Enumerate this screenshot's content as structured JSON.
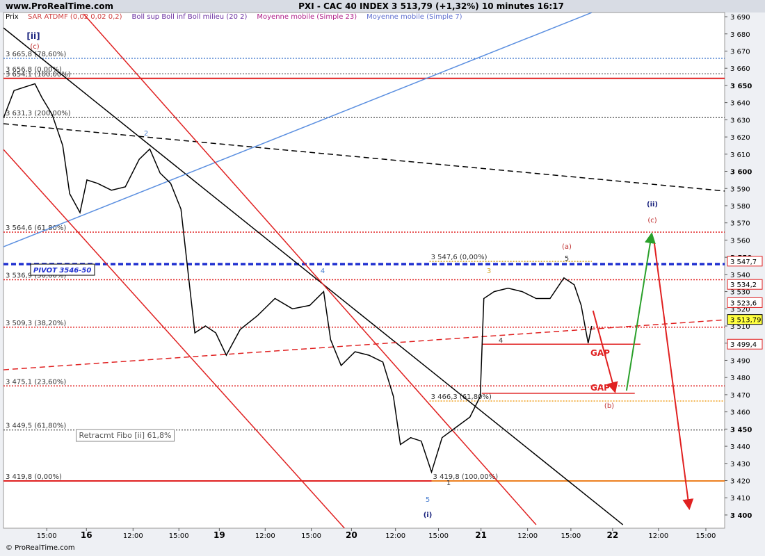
{
  "header": {
    "site": "www.ProRealTime.com",
    "title": "PXI - CAC 40 INDEX    3 513,79 (+1,32%)    10 minutes  16:17",
    "footer": "© ProRealTime.com"
  },
  "chart_data": {
    "type": "line",
    "indicators": [
      {
        "name": "SAR ATDMF (0,02 0,02 0,2)",
        "color": "#d04040"
      },
      {
        "name": "Boll sup Boll inf Boll milieu (20 2)",
        "color": "#6a2ea0"
      },
      {
        "name": "Moyenne mobile (Simple 23)",
        "color": "#b0208a"
      },
      {
        "name": "Moyenne mobile (Simple 7)",
        "color": "#6070d0"
      }
    ],
    "series": [
      {
        "name": "Prix",
        "color": "#000000",
        "x": [
          0,
          4.1,
          8.1,
          12.2,
          14.9,
          18.9,
          23.0,
          25.7,
          29.7,
          32.4,
          36.5,
          41.9,
          47.3,
          52.7,
          56.8,
          60.8,
          64.9,
          68.9,
          71.6,
          74.3,
          78.4,
          82.4,
          86.5,
          91.9,
          98.6,
          105.4,
          112.2,
          118.9,
          124.3,
          127.0,
          131.1,
          136.5,
          141.9,
          147.3,
          151.4,
          154.1,
          158.1,
          162.2,
          166.2,
          170.3,
          175.7,
          181.1,
          185.1,
          186.5,
          190.5,
          195.9,
          201.4,
          206.8,
          212.2,
          217.6,
          221.6,
          224.3,
          227.0,
          228.4
        ],
        "values": [
          3631,
          3647,
          3649,
          3651,
          3643,
          3633,
          3615,
          3587,
          3576,
          3595,
          3593,
          3589,
          3591,
          3607,
          3613,
          3599,
          3593,
          3578,
          3542,
          3506,
          3510,
          3506,
          3493,
          3508,
          3516,
          3526,
          3520,
          3522,
          3530,
          3502,
          3487,
          3495,
          3493,
          3489,
          3469,
          3441,
          3445,
          3443,
          3425,
          3445,
          3451,
          3457,
          3469,
          3526,
          3530,
          3532,
          3530,
          3526,
          3526,
          3538,
          3534,
          3522,
          3500,
          3510
        ]
      }
    ],
    "xlim": [
      0,
      280
    ],
    "xticks": [
      {
        "value": 16.8,
        "label": "15:00"
      },
      {
        "value": 32.2,
        "label": "16"
      },
      {
        "value": 50.3,
        "label": "12:00"
      },
      {
        "value": 68.1,
        "label": "15:00"
      },
      {
        "value": 83.8,
        "label": "19"
      },
      {
        "value": 101.6,
        "label": "12:00"
      },
      {
        "value": 119.5,
        "label": "15:00"
      },
      {
        "value": 135.1,
        "label": "20"
      },
      {
        "value": 152.2,
        "label": "12:00"
      },
      {
        "value": 168.9,
        "label": "15:00"
      },
      {
        "value": 185.4,
        "label": "21"
      },
      {
        "value": 203.5,
        "label": "12:00"
      },
      {
        "value": 220.3,
        "label": "15:00"
      },
      {
        "value": 236.5,
        "label": "22"
      },
      {
        "value": 254.3,
        "label": "12:00"
      },
      {
        "value": 272.7,
        "label": "15:00"
      }
    ],
    "ylim": [
      3392.3,
      3697.7
    ],
    "yticks": [
      {
        "value": 3400,
        "label": "3 400"
      },
      {
        "value": 3410,
        "label": "3 410"
      },
      {
        "value": 3420,
        "label": "3 420"
      },
      {
        "value": 3430,
        "label": "3 430"
      },
      {
        "value": 3440,
        "label": "3 440"
      },
      {
        "value": 3450,
        "label": "3 450"
      },
      {
        "value": 3460,
        "label": "3 460"
      },
      {
        "value": 3470,
        "label": "3 470"
      },
      {
        "value": 3480,
        "label": "3 480"
      },
      {
        "value": 3490,
        "label": "3 490"
      },
      {
        "value": 3500,
        "label": "3 500"
      },
      {
        "value": 3510,
        "label": "3 510"
      },
      {
        "value": 3520,
        "label": "3 520"
      },
      {
        "value": 3530,
        "label": "3 530"
      },
      {
        "value": 3540,
        "label": "3 540"
      },
      {
        "value": 3550,
        "label": "3 550"
      },
      {
        "value": 3560,
        "label": "3 560"
      },
      {
        "value": 3570,
        "label": "3 570"
      },
      {
        "value": 3580,
        "label": "3 580"
      },
      {
        "value": 3590,
        "label": "3 590"
      },
      {
        "value": 3600,
        "label": "3 600"
      },
      {
        "value": 3610,
        "label": "3 610"
      },
      {
        "value": 3620,
        "label": "3 620"
      },
      {
        "value": 3630,
        "label": "3 630"
      },
      {
        "value": 3640,
        "label": "3 640"
      },
      {
        "value": 3650,
        "label": "3 650"
      },
      {
        "value": 3660,
        "label": "3 660"
      },
      {
        "value": 3670,
        "label": "3 670"
      },
      {
        "value": 3680,
        "label": "3 680"
      },
      {
        "value": 3690,
        "label": "3 690"
      }
    ],
    "levels": [
      {
        "value": 3665.8,
        "label": "3 665,8 (78,60%)",
        "color": "#4a7fd0",
        "style": "dotted"
      },
      {
        "value": 3656.8,
        "label": "3 656,8 (0,00%)",
        "color": "#888888",
        "style": "dotted"
      },
      {
        "value": 3654.1,
        "label": "3 654,1 (100,00%)",
        "color": "#e02020",
        "style": "solid"
      },
      {
        "value": 3631.3,
        "label": "3 631,3 (200,00%)",
        "color": "#666666",
        "style": "dotted"
      },
      {
        "value": 3564.6,
        "label": "3 564,6 (61,80%)",
        "color": "#e02020",
        "style": "dotted"
      },
      {
        "value": 3536.9,
        "label": "3 536,9 (50,00%)",
        "color": "#e02020",
        "style": "dotted"
      },
      {
        "value": 3509.3,
        "label": "3 509,3 (38,20%)",
        "color": "#e02020",
        "style": "dotted"
      },
      {
        "value": 3475.1,
        "label": "3 475,1 (23,60%)",
        "color": "#e02020",
        "style": "dotted"
      },
      {
        "value": 3449.5,
        "label": "3 449,5 (61,80%)",
        "color": "#666666",
        "style": "dotted"
      },
      {
        "value": 3419.8,
        "label": "3 419,8 (0,00%)",
        "color": "#e02020",
        "style": "solid"
      }
    ],
    "segments": [
      {
        "value": 3547.6,
        "label": "3 547,6 (0,00%)",
        "color": "#d0a020",
        "style": "dotted",
        "x0": 165.4,
        "x1": 228.4
      },
      {
        "value": 3466.3,
        "label": "3 466,3 (61,80%)",
        "color": "#f0a020",
        "style": "dotted",
        "x0": 165.4,
        "x1": 280
      },
      {
        "value": 3419.8,
        "label": "3 419,8 (100,00%)",
        "color": "#f0a020",
        "style": "solid",
        "x0": 166.2,
        "x1": 280
      },
      {
        "value": 3499.4,
        "color": "#e02020",
        "style": "solid",
        "x0": 185.7,
        "x1": 247.3
      },
      {
        "value": 3470.8,
        "color": "#e02020",
        "style": "solid",
        "x0": 185.7,
        "x1": 245.1
      }
    ],
    "pivot": {
      "value": 3546,
      "label": "PIVOT 3546-50",
      "color": "#2030d0"
    },
    "trendlines": [
      {
        "color": "#000000",
        "style": "solid",
        "x": [
          0,
          240.5
        ],
        "y": [
          3683.5,
          3394.3
        ]
      },
      {
        "color": "#000000",
        "style": "dashed",
        "x": [
          0,
          280.3
        ],
        "y": [
          3627.7,
          3588.5
        ]
      },
      {
        "color": "#5b8fe0",
        "style": "solid",
        "x": [
          0,
          228.4
        ],
        "y": [
          3556.1,
          3692.4
        ]
      },
      {
        "color": "#e02020",
        "style": "solid",
        "x": [
          31.1,
          206.8
        ],
        "y": [
          3691.6,
          3394.3
        ]
      },
      {
        "color": "#e02020",
        "style": "solid",
        "x": [
          0,
          132.4
        ],
        "y": [
          3612.7,
          3392.3
        ]
      },
      {
        "color": "#e02020",
        "style": "dashed",
        "x": [
          0,
          280.3
        ],
        "y": [
          3484.5,
          3513.6
        ]
      }
    ],
    "arrows": [
      {
        "color": "#e02020",
        "x": [
          228.9,
          237.3
        ],
        "y": [
          3518.9,
          3472.4
        ]
      },
      {
        "color": "#2aa02a",
        "x": [
          241.9,
          251.6
        ],
        "y": [
          3472.4,
          3563.0
        ]
      },
      {
        "color": "#e02020",
        "x": [
          252.7,
          266.2
        ],
        "y": [
          3558.1,
          3404.4
        ]
      }
    ],
    "price_markers": {
      "values": [
        3547.7,
        3534.2,
        3523.6,
        3513.79,
        3499.4
      ],
      "value_labels": [
        "3 547,7",
        "3 534,2",
        "3 523,6",
        "3 513,79",
        "3 499,4"
      ]
    },
    "annotations": [
      "[ii]",
      "(c)",
      "2",
      "4",
      "5",
      "(i)",
      "(ii)",
      "(c)",
      "(a)",
      "(b)",
      "5",
      "4",
      "3",
      "1",
      "GAP",
      "GAP",
      "Retracmt Fibo [ii] 61,8%"
    ]
  }
}
